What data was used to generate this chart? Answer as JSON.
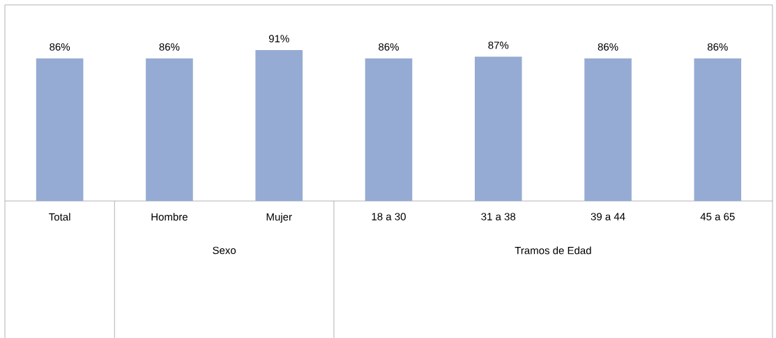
{
  "chart_data": {
    "type": "bar",
    "categories": [
      "Total",
      "Hombre",
      "Mujer",
      "18 a 30",
      "31 a 38",
      "39 a 44",
      "45 a 65"
    ],
    "values": [
      86,
      86,
      91,
      86,
      87,
      86,
      86
    ],
    "value_labels": [
      "86%",
      "86%",
      "91%",
      "86%",
      "87%",
      "86%",
      "86%"
    ],
    "color": "#95abd3",
    "relative": false,
    "annotations": [
      "Sexo",
      "Tramos de Edad"
    ]
  }
}
